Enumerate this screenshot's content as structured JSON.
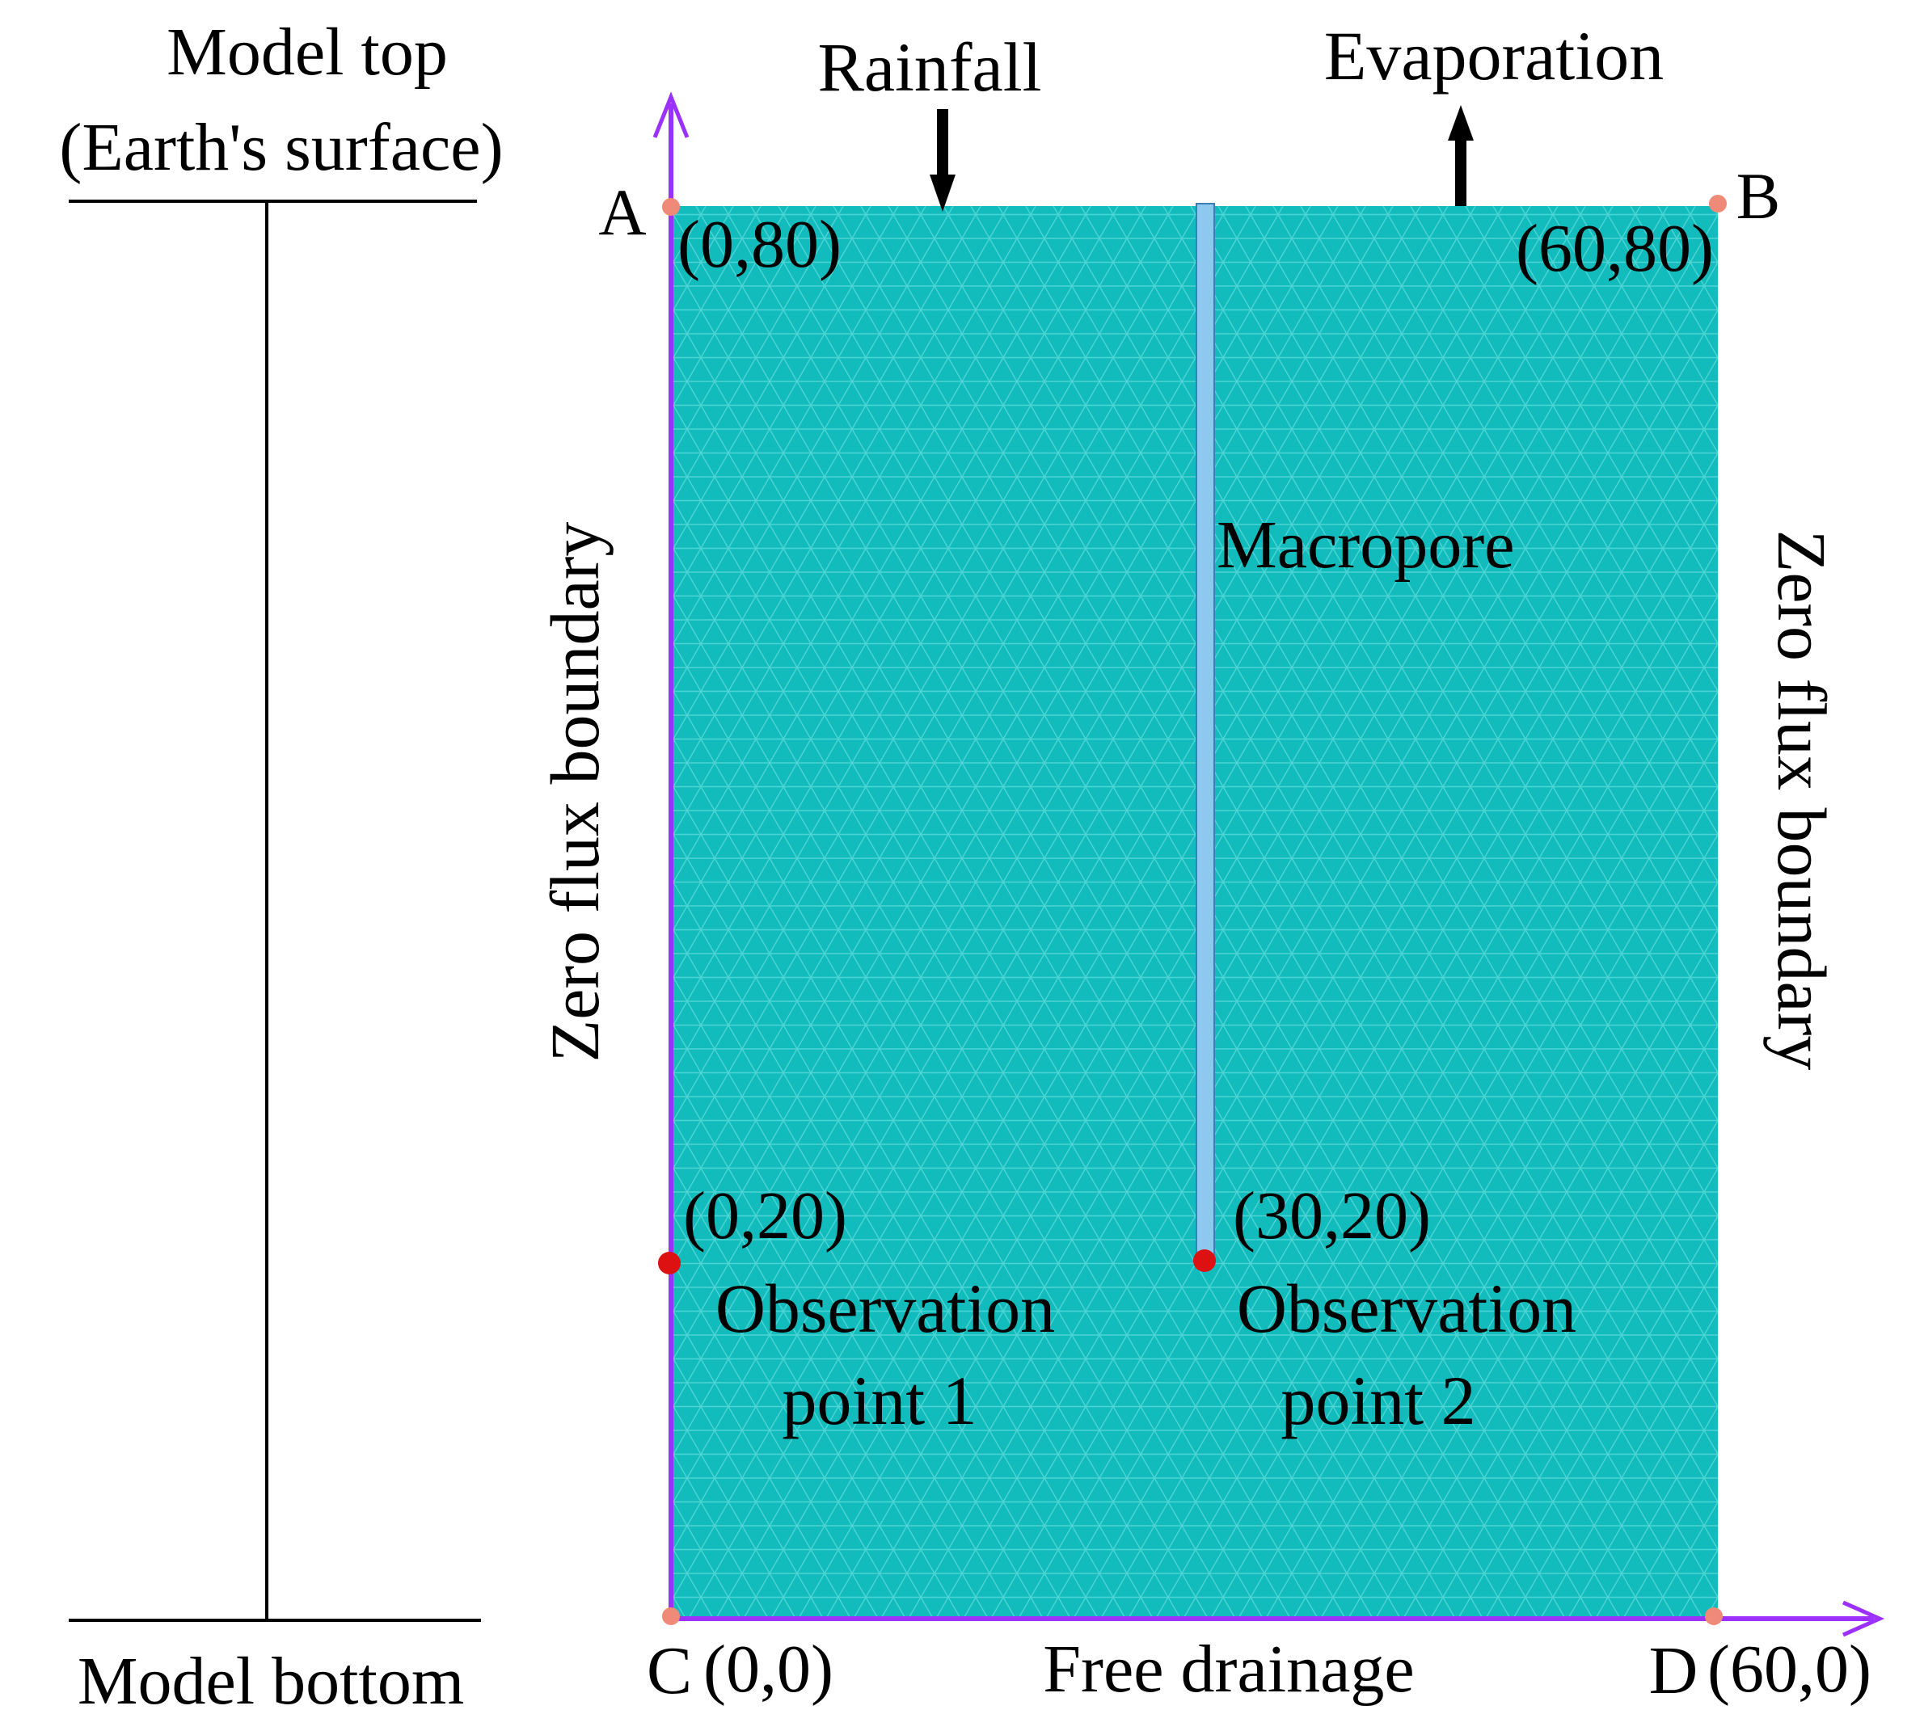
{
  "figure": {
    "depth_scale": {
      "top_label_line1": "Model top",
      "top_label_line2": "(Earth's surface)",
      "bottom_label": "Model bottom"
    },
    "top_boundary": {
      "rainfall_label": "Rainfall",
      "evaporation_label": "Evaporation"
    },
    "corners": {
      "a": {
        "letter": "A",
        "coord": "(0,80)"
      },
      "b": {
        "letter": "B",
        "coord": "(60,80)"
      },
      "c": {
        "letter": "C",
        "coord": "(0,0)"
      },
      "d": {
        "letter": "D",
        "coord": "(60,0)"
      }
    },
    "boundaries": {
      "left": "Zero flux boundary",
      "right": "Zero flux boundary",
      "bottom": "Free drainage"
    },
    "macropore": {
      "label": "Macropore"
    },
    "observation_points": [
      {
        "coord": "(0,20)",
        "name_line1": "Observation",
        "name_line2": "point 1"
      },
      {
        "coord": "(30,20)",
        "name_line1": "Observation",
        "name_line2": "point 2"
      }
    ],
    "colors": {
      "domain_fill": "#12bcbc",
      "mesh_line": "#8ef0f0",
      "axis": "#9b30ff",
      "macropore": "#8ec8ee",
      "corner_dot": "#f08a78",
      "obs_point": "#dd1111"
    }
  }
}
